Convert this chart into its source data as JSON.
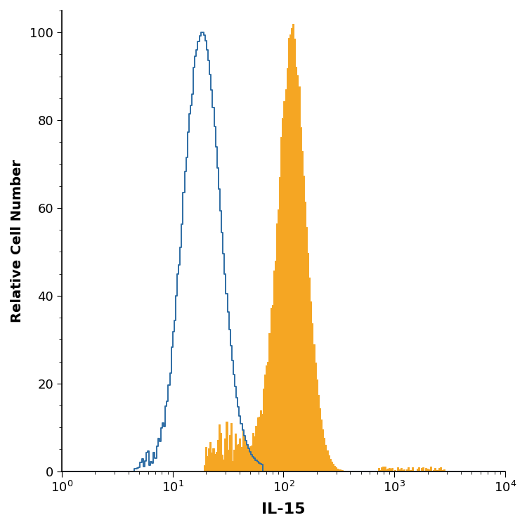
{
  "title": "",
  "xlabel": "IL-15",
  "ylabel": "Relative Cell Number",
  "xlim": [
    1,
    10000
  ],
  "ylim": [
    0,
    105
  ],
  "yticks": [
    0,
    20,
    40,
    60,
    80,
    100
  ],
  "xlabel_fontsize": 16,
  "ylabel_fontsize": 14,
  "tick_fontsize": 13,
  "open_color": "#2E6DA4",
  "filled_color": "#F5A623",
  "background_color": "#ffffff",
  "open_peak_log": 1.26,
  "open_spread_log": 0.155,
  "filled_peak_log": 2.08,
  "filled_spread_log": 0.13,
  "n_bins": 300
}
